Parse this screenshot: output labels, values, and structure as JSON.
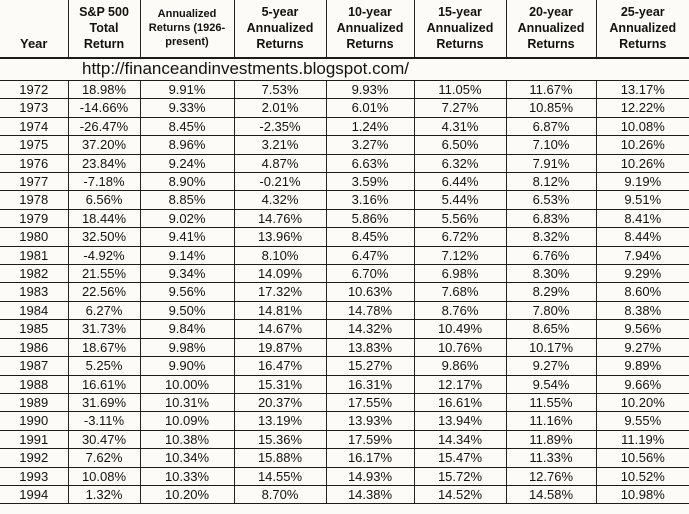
{
  "page": {
    "background_color": "#fcfbf7",
    "border_color": "#1c1c1c",
    "text_color": "#121212"
  },
  "table": {
    "columns": [
      {
        "id": "year",
        "label": "Year"
      },
      {
        "id": "sp500",
        "label": "S&P 500\nTotal\nReturn"
      },
      {
        "id": "ann1926",
        "label": "Annualized\nReturns (1926-\npresent)",
        "small": true
      },
      {
        "id": "ann5",
        "label": "5-year\nAnnualized\nReturns"
      },
      {
        "id": "ann10",
        "label": "10-year\nAnnualized\nReturns"
      },
      {
        "id": "ann15",
        "label": "15-year\nAnnualized\nReturns"
      },
      {
        "id": "ann20",
        "label": "20-year\nAnnualized\nReturns"
      },
      {
        "id": "ann25",
        "label": "25-year\nAnnualized\nReturns"
      }
    ],
    "url_banner": "http://financeandinvestments.blogspot.com/",
    "rows": [
      {
        "year": "1972",
        "values": [
          "18.98%",
          "9.91%",
          "7.53%",
          "9.93%",
          "11.05%",
          "11.67%",
          "13.17%"
        ]
      },
      {
        "year": "1973",
        "values": [
          "-14.66%",
          "9.33%",
          "2.01%",
          "6.01%",
          "7.27%",
          "10.85%",
          "12.22%"
        ]
      },
      {
        "year": "1974",
        "values": [
          "-26.47%",
          "8.45%",
          "-2.35%",
          "1.24%",
          "4.31%",
          "6.87%",
          "10.08%"
        ]
      },
      {
        "year": "1975",
        "values": [
          "37.20%",
          "8.96%",
          "3.21%",
          "3.27%",
          "6.50%",
          "7.10%",
          "10.26%"
        ]
      },
      {
        "year": "1976",
        "values": [
          "23.84%",
          "9.24%",
          "4.87%",
          "6.63%",
          "6.32%",
          "7.91%",
          "10.26%"
        ]
      },
      {
        "year": "1977",
        "values": [
          "-7.18%",
          "8.90%",
          "-0.21%",
          "3.59%",
          "6.44%",
          "8.12%",
          "9.19%"
        ]
      },
      {
        "year": "1978",
        "values": [
          "6.56%",
          "8.85%",
          "4.32%",
          "3.16%",
          "5.44%",
          "6.53%",
          "9.51%"
        ]
      },
      {
        "year": "1979",
        "values": [
          "18.44%",
          "9.02%",
          "14.76%",
          "5.86%",
          "5.56%",
          "6.83%",
          "8.41%"
        ]
      },
      {
        "year": "1980",
        "values": [
          "32.50%",
          "9.41%",
          "13.96%",
          "8.45%",
          "6.72%",
          "8.32%",
          "8.44%"
        ]
      },
      {
        "year": "1981",
        "values": [
          "-4.92%",
          "9.14%",
          "8.10%",
          "6.47%",
          "7.12%",
          "6.76%",
          "7.94%"
        ]
      },
      {
        "year": "1982",
        "values": [
          "21.55%",
          "9.34%",
          "14.09%",
          "6.70%",
          "6.98%",
          "8.30%",
          "9.29%"
        ]
      },
      {
        "year": "1983",
        "values": [
          "22.56%",
          "9.56%",
          "17.32%",
          "10.63%",
          "7.68%",
          "8.29%",
          "8.60%"
        ]
      },
      {
        "year": "1984",
        "values": [
          "6.27%",
          "9.50%",
          "14.81%",
          "14.78%",
          "8.76%",
          "7.80%",
          "8.38%"
        ]
      },
      {
        "year": "1985",
        "values": [
          "31.73%",
          "9.84%",
          "14.67%",
          "14.32%",
          "10.49%",
          "8.65%",
          "9.56%"
        ]
      },
      {
        "year": "1986",
        "values": [
          "18.67%",
          "9.98%",
          "19.87%",
          "13.83%",
          "10.76%",
          "10.17%",
          "9.27%"
        ]
      },
      {
        "year": "1987",
        "values": [
          "5.25%",
          "9.90%",
          "16.47%",
          "15.27%",
          "9.86%",
          "9.27%",
          "9.89%"
        ]
      },
      {
        "year": "1988",
        "values": [
          "16.61%",
          "10.00%",
          "15.31%",
          "16.31%",
          "12.17%",
          "9.54%",
          "9.66%"
        ]
      },
      {
        "year": "1989",
        "values": [
          "31.69%",
          "10.31%",
          "20.37%",
          "17.55%",
          "16.61%",
          "11.55%",
          "10.20%"
        ]
      },
      {
        "year": "1990",
        "values": [
          "-3.11%",
          "10.09%",
          "13.19%",
          "13.93%",
          "13.94%",
          "11.16%",
          "9.55%"
        ]
      },
      {
        "year": "1991",
        "values": [
          "30.47%",
          "10.38%",
          "15.36%",
          "17.59%",
          "14.34%",
          "11.89%",
          "11.19%"
        ]
      },
      {
        "year": "1992",
        "values": [
          "7.62%",
          "10.34%",
          "15.88%",
          "16.17%",
          "15.47%",
          "11.33%",
          "10.56%"
        ]
      },
      {
        "year": "1993",
        "values": [
          "10.08%",
          "10.33%",
          "14.55%",
          "14.93%",
          "15.72%",
          "12.76%",
          "10.52%"
        ]
      },
      {
        "year": "1994",
        "values": [
          "1.32%",
          "10.20%",
          "8.70%",
          "14.38%",
          "14.52%",
          "14.58%",
          "10.98%"
        ]
      }
    ]
  },
  "chart_data": {
    "type": "table",
    "annotation": "http://financeandinvestments.blogspot.com/",
    "columns": [
      "Year",
      "S&P 500 Total Return",
      "Annualized Returns (1926-present)",
      "5-year Annualized Returns",
      "10-year Annualized Returns",
      "15-year Annualized Returns",
      "20-year Annualized Returns",
      "25-year Annualized Returns"
    ],
    "units": "percent",
    "rows": [
      [
        1972,
        18.98,
        9.91,
        7.53,
        9.93,
        11.05,
        11.67,
        13.17
      ],
      [
        1973,
        -14.66,
        9.33,
        2.01,
        6.01,
        7.27,
        10.85,
        12.22
      ],
      [
        1974,
        -26.47,
        8.45,
        -2.35,
        1.24,
        4.31,
        6.87,
        10.08
      ],
      [
        1975,
        37.2,
        8.96,
        3.21,
        3.27,
        6.5,
        7.1,
        10.26
      ],
      [
        1976,
        23.84,
        9.24,
        4.87,
        6.63,
        6.32,
        7.91,
        10.26
      ],
      [
        1977,
        -7.18,
        8.9,
        -0.21,
        3.59,
        6.44,
        8.12,
        9.19
      ],
      [
        1978,
        6.56,
        8.85,
        4.32,
        3.16,
        5.44,
        6.53,
        9.51
      ],
      [
        1979,
        18.44,
        9.02,
        14.76,
        5.86,
        5.56,
        6.83,
        8.41
      ],
      [
        1980,
        32.5,
        9.41,
        13.96,
        8.45,
        6.72,
        8.32,
        8.44
      ],
      [
        1981,
        -4.92,
        9.14,
        8.1,
        6.47,
        7.12,
        6.76,
        7.94
      ],
      [
        1982,
        21.55,
        9.34,
        14.09,
        6.7,
        6.98,
        8.3,
        9.29
      ],
      [
        1983,
        22.56,
        9.56,
        17.32,
        10.63,
        7.68,
        8.29,
        8.6
      ],
      [
        1984,
        6.27,
        9.5,
        14.81,
        14.78,
        8.76,
        7.8,
        8.38
      ],
      [
        1985,
        31.73,
        9.84,
        14.67,
        14.32,
        10.49,
        8.65,
        9.56
      ],
      [
        1986,
        18.67,
        9.98,
        19.87,
        13.83,
        10.76,
        10.17,
        9.27
      ],
      [
        1987,
        5.25,
        9.9,
        16.47,
        15.27,
        9.86,
        9.27,
        9.89
      ],
      [
        1988,
        16.61,
        10.0,
        15.31,
        16.31,
        12.17,
        9.54,
        9.66
      ],
      [
        1989,
        31.69,
        10.31,
        20.37,
        17.55,
        16.61,
        11.55,
        10.2
      ],
      [
        1990,
        -3.11,
        10.09,
        13.19,
        13.93,
        13.94,
        11.16,
        9.55
      ],
      [
        1991,
        30.47,
        10.38,
        15.36,
        17.59,
        14.34,
        11.89,
        11.19
      ],
      [
        1992,
        7.62,
        10.34,
        15.88,
        16.17,
        15.47,
        11.33,
        10.56
      ],
      [
        1993,
        10.08,
        10.33,
        14.55,
        14.93,
        15.72,
        12.76,
        10.52
      ],
      [
        1994,
        1.32,
        10.2,
        8.7,
        14.38,
        14.52,
        14.58,
        10.98
      ]
    ]
  }
}
